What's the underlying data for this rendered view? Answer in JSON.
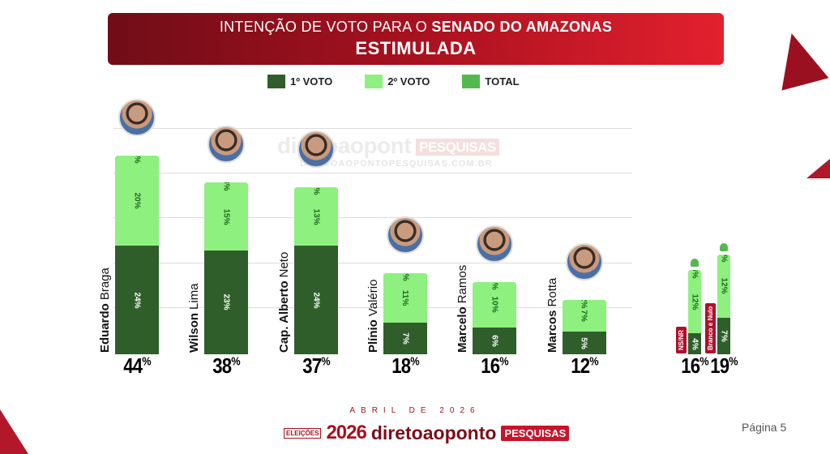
{
  "header": {
    "title_prefix": "INTENÇÃO DE VOTO PARA O ",
    "title_bold": "SENADO DO AMAZONAS",
    "subtitle": "ESTIMULADA"
  },
  "watermark": {
    "logo": "direto ao ponto PESQUISAS",
    "url": "DIRETOAOPONTOPESQUISAS.COM.BR"
  },
  "colors": {
    "first": "#2f5e2b",
    "second": "#8ef07f",
    "total": "#55b84f",
    "brand": "#a8111f"
  },
  "chart_data": {
    "type": "bar",
    "title": "INTENÇÃO DE VOTO PARA O SENADO DO AMAZONAS - ESTIMULADA",
    "legend": [
      "1º VOTO",
      "2º VOTO",
      "TOTAL"
    ],
    "legend_placement": "top",
    "grid": true,
    "ylim": [
      0,
      50
    ],
    "candidates": [
      {
        "first": "Eduardo",
        "last": "Braga",
        "voto1": 24,
        "voto2": 20,
        "total": 44,
        "labels": {
          "v1": "24%",
          "v2": "20%",
          "t": "44%"
        },
        "total_label": "44"
      },
      {
        "first": "Wilson",
        "last": "Lima",
        "voto1": 23,
        "voto2": 15,
        "total": 38,
        "labels": {
          "v1": "23%",
          "v2": "15%",
          "t": "38%"
        },
        "total_label": "38"
      },
      {
        "first": "Cap. Alberto",
        "last": "Neto",
        "voto1": 24,
        "voto2": 13,
        "total": 37,
        "labels": {
          "v1": "24%",
          "v2": "13%",
          "t": "37%"
        },
        "total_label": "37"
      },
      {
        "first": "Plínio",
        "last": "Valério",
        "voto1": 7,
        "voto2": 11,
        "total": 18,
        "labels": {
          "v1": "7%",
          "v2": "11%",
          "t": "18%"
        },
        "total_label": "18"
      },
      {
        "first": "Marcelo",
        "last": "Ramos",
        "voto1": 6,
        "voto2": 10,
        "total": 16,
        "labels": {
          "v1": "6%",
          "v2": "10%",
          "t": "16%"
        },
        "total_label": "16"
      },
      {
        "first": "Marcos",
        "last": "Rotta",
        "voto1": 5,
        "voto2": 7,
        "total": 12,
        "labels": {
          "v1": "5%",
          "v2": "7%",
          "t": "12%"
        },
        "total_label": "12"
      }
    ],
    "others": [
      {
        "label": "NS/NR",
        "voto1": 4,
        "voto2": 12,
        "total": 16,
        "labels": {
          "v1": "4%",
          "v2": "12%",
          "t": "16%"
        },
        "total_label": "16"
      },
      {
        "label": "Branco e Nulo",
        "voto1": 7,
        "voto2": 12,
        "total": 19,
        "labels": {
          "v1": "7%",
          "v2": "12%",
          "t": "19%"
        },
        "total_label": "19"
      }
    ]
  },
  "footer": {
    "date": "ABRIL DE 2026",
    "logo_tag": "ELEIÇÕES",
    "logo_year": "2026",
    "logo_brand": "diretoaoponto",
    "logo_pill": "PESQUISAS"
  },
  "page": "Página 5",
  "percent_sign": "%"
}
